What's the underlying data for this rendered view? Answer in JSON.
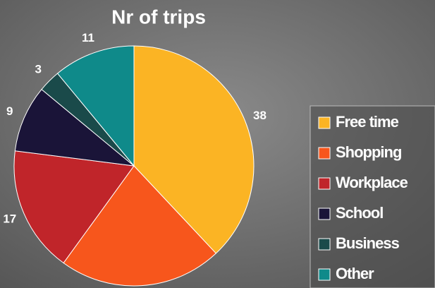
{
  "chart_data": {
    "type": "pie",
    "title": "Nr of trips",
    "categories": [
      "Free time",
      "Shopping",
      "Workplace",
      "School",
      "Business",
      "Other"
    ],
    "values": [
      38,
      22,
      17,
      9,
      3,
      11
    ],
    "value_labels": [
      "38",
      null,
      "17",
      "9",
      "3",
      "11"
    ],
    "colors": [
      "#FBB424",
      "#F7561C",
      "#C0252A",
      "#1A1438",
      "#1A4A4A",
      "#0F8A8A"
    ],
    "legend": "right"
  }
}
